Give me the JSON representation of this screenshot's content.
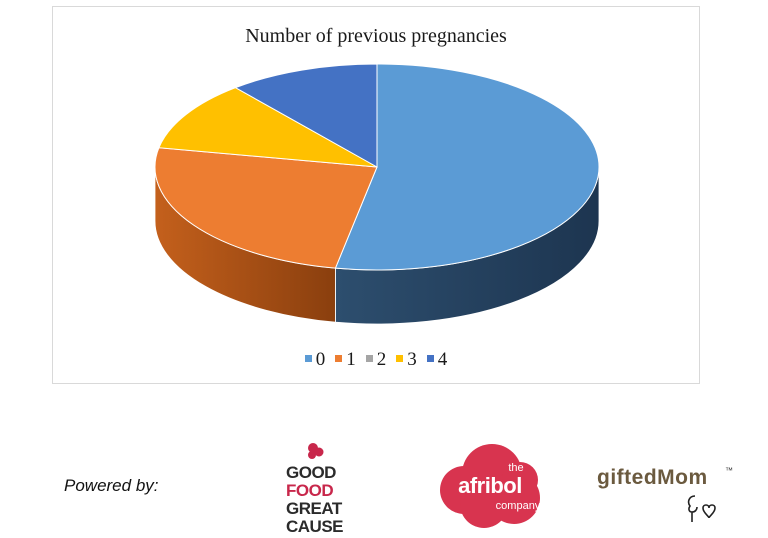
{
  "chart_data": {
    "type": "pie",
    "title": "Number of previous pregnancies",
    "categories": [
      "0",
      "1",
      "2",
      "3",
      "4"
    ],
    "values": [
      53,
      25,
      0,
      11,
      11
    ],
    "colors": [
      "#5b9bd5",
      "#ed7d31",
      "#a5a5a5",
      "#ffc000",
      "#4472c4"
    ],
    "style": "3d",
    "legend_position": "bottom"
  },
  "footer": {
    "powered_by": "Powered by:",
    "logos": {
      "gfgc": {
        "lines": [
          "GOOD",
          "FOOD",
          "GREAT",
          "CAUSE"
        ],
        "colors": [
          "#2b2b2b",
          "#c8274b",
          "#2b2b2b",
          "#2b2b2b"
        ],
        "heart_color": "#c8274b",
        "icon": "heart-cluster-icon"
      },
      "afribol": {
        "the": "the",
        "name": "afribol",
        "company": "company",
        "color": "#d8344f",
        "icon": "cloud-blob-icon"
      },
      "gifted": {
        "name": "giftedMom",
        "tm": "™",
        "color": "#6b5a3f",
        "icon": "mother-heart-icon"
      }
    }
  }
}
